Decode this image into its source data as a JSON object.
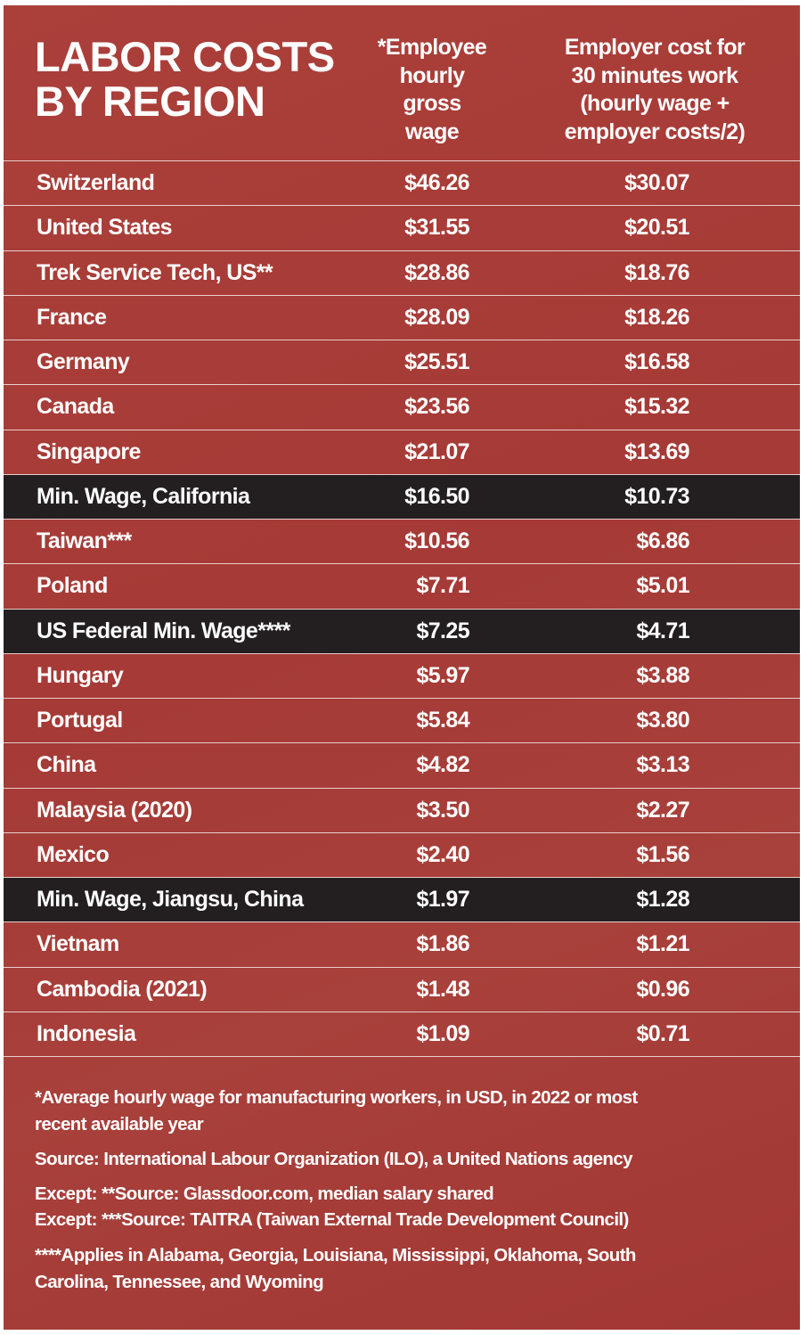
{
  "header": {
    "title": [
      "LABOR COSTS",
      "BY REGION"
    ],
    "columns": [
      [
        "*Employee",
        "hourly",
        "gross",
        "wage"
      ],
      [
        "Employer cost for",
        "30 minutes work",
        "(hourly wage +",
        "employer costs/2)"
      ]
    ]
  },
  "table": {
    "highlighted_rows": [
      7,
      10,
      16
    ],
    "rows": [
      [
        "Switzerland",
        "$46.26",
        "$30.07"
      ],
      [
        "United States",
        "$31.55",
        "$20.51"
      ],
      [
        "Trek Service Tech, US**",
        "$28.86",
        "$18.76"
      ],
      [
        "France",
        "$28.09",
        "$18.26"
      ],
      [
        "Germany",
        "$25.51",
        "$16.58"
      ],
      [
        "Canada",
        "$23.56",
        "$15.32"
      ],
      [
        "Singapore",
        "$21.07",
        "$13.69"
      ],
      [
        "Min. Wage, California",
        "$16.50",
        "$10.73"
      ],
      [
        "Taiwan***",
        "$10.56",
        "$6.86"
      ],
      [
        "Poland",
        "$7.71",
        "$5.01"
      ],
      [
        "US Federal Min. Wage****",
        "$7.25",
        "$4.71"
      ],
      [
        "Hungary",
        "$5.97",
        "$3.88"
      ],
      [
        "Portugal",
        "$5.84",
        "$3.80"
      ],
      [
        "China",
        "$4.82",
        "$3.13"
      ],
      [
        "Malaysia (2020)",
        "$3.50",
        "$2.27"
      ],
      [
        "Mexico",
        "$2.40",
        "$1.56"
      ],
      [
        "Min. Wage, Jiangsu, China",
        "$1.97",
        "$1.28"
      ],
      [
        "Vietnam",
        "$1.86",
        "$1.21"
      ],
      [
        "Cambodia (2021)",
        "$1.48",
        "$0.96"
      ],
      [
        "Indonesia",
        "$1.09",
        "$0.71"
      ]
    ]
  },
  "footnotes": [
    [
      "*Average hourly wage for manufacturing workers, in USD, in 2022 or most",
      "recent available year"
    ],
    [
      "Source: International Labour Organization (ILO), a United Nations agency"
    ],
    [
      "Except: **Source: Glassdoor.com, median salary shared",
      "Except: ***Source: TAITRA (Taiwan External Trade Development Council)"
    ],
    [
      "****Applies in Alabama, Georgia, Louisiana, Mississippi, Oklahoma, South",
      "Carolina, Tennessee, and Wyoming"
    ]
  ]
}
